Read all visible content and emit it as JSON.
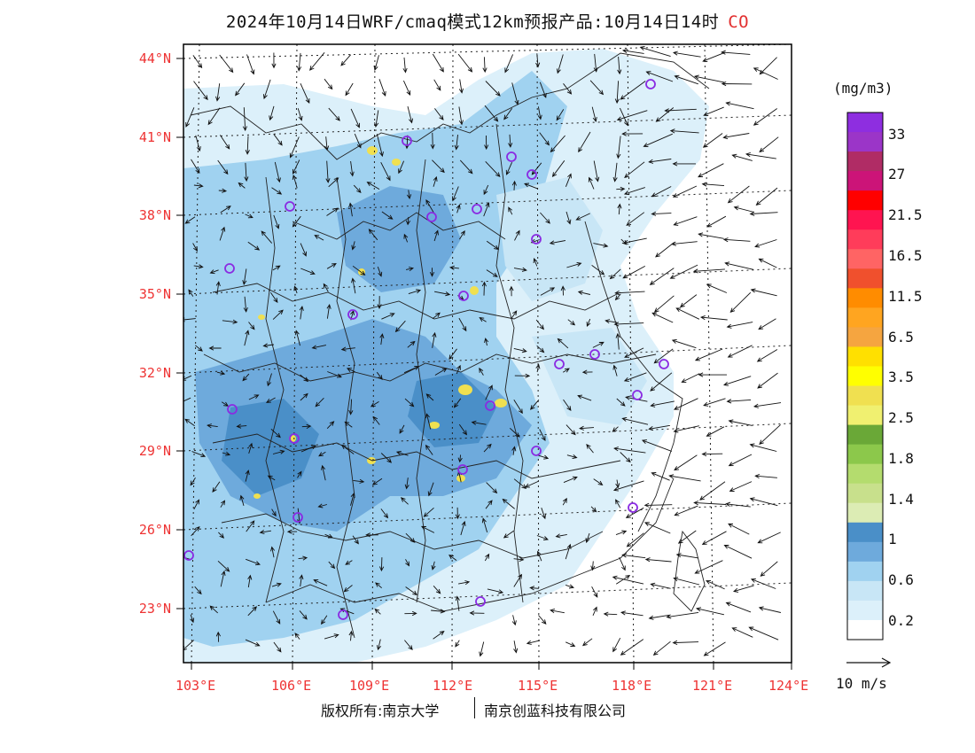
{
  "title": {
    "text": "2024年10月14日WRF/cmaq模式12km预报产品:10月14日14时",
    "pollutant": "CO"
  },
  "map": {
    "lat_labels": [
      "44°N",
      "41°N",
      "38°N",
      "35°N",
      "32°N",
      "29°N",
      "26°N",
      "23°N"
    ],
    "lon_labels": [
      "103°E",
      "106°E",
      "109°E",
      "112°E",
      "115°E",
      "118°E",
      "121°E",
      "124°E"
    ],
    "colors": {
      "grid_label": "#e33333",
      "station_marker": "#8a2be2"
    },
    "stations_count_visible": 27
  },
  "legend": {
    "unit": "(mg/m3)",
    "levels": [
      "33",
      "27",
      "21.5",
      "16.5",
      "11.5",
      "6.5",
      "3.5",
      "2.5",
      "1.8",
      "1.4",
      "1",
      "0.6",
      "0.2"
    ],
    "colors": [
      "#8e2ee0",
      "#9b35c8",
      "#b02c65",
      "#cc1478",
      "#ff0000",
      "#ff1450",
      "#ff3c5a",
      "#ff6464",
      "#f0502d",
      "#ff8c00",
      "#ffa520",
      "#f5a540",
      "#ffe000",
      "#ffff00",
      "#f0e050",
      "#f0f070",
      "#6aa837",
      "#8cc84b",
      "#b4dc6e",
      "#c8e08c",
      "#dcecb4",
      "#4a8fc8",
      "#6eaadc",
      "#a0d2f0",
      "#c8e6f6",
      "#dcf0fa",
      "#ffffff"
    ],
    "reference_vector": "10 m/s"
  },
  "footer": {
    "left": "版权所有:南京大学",
    "right": "南京创蓝科技有限公司"
  }
}
